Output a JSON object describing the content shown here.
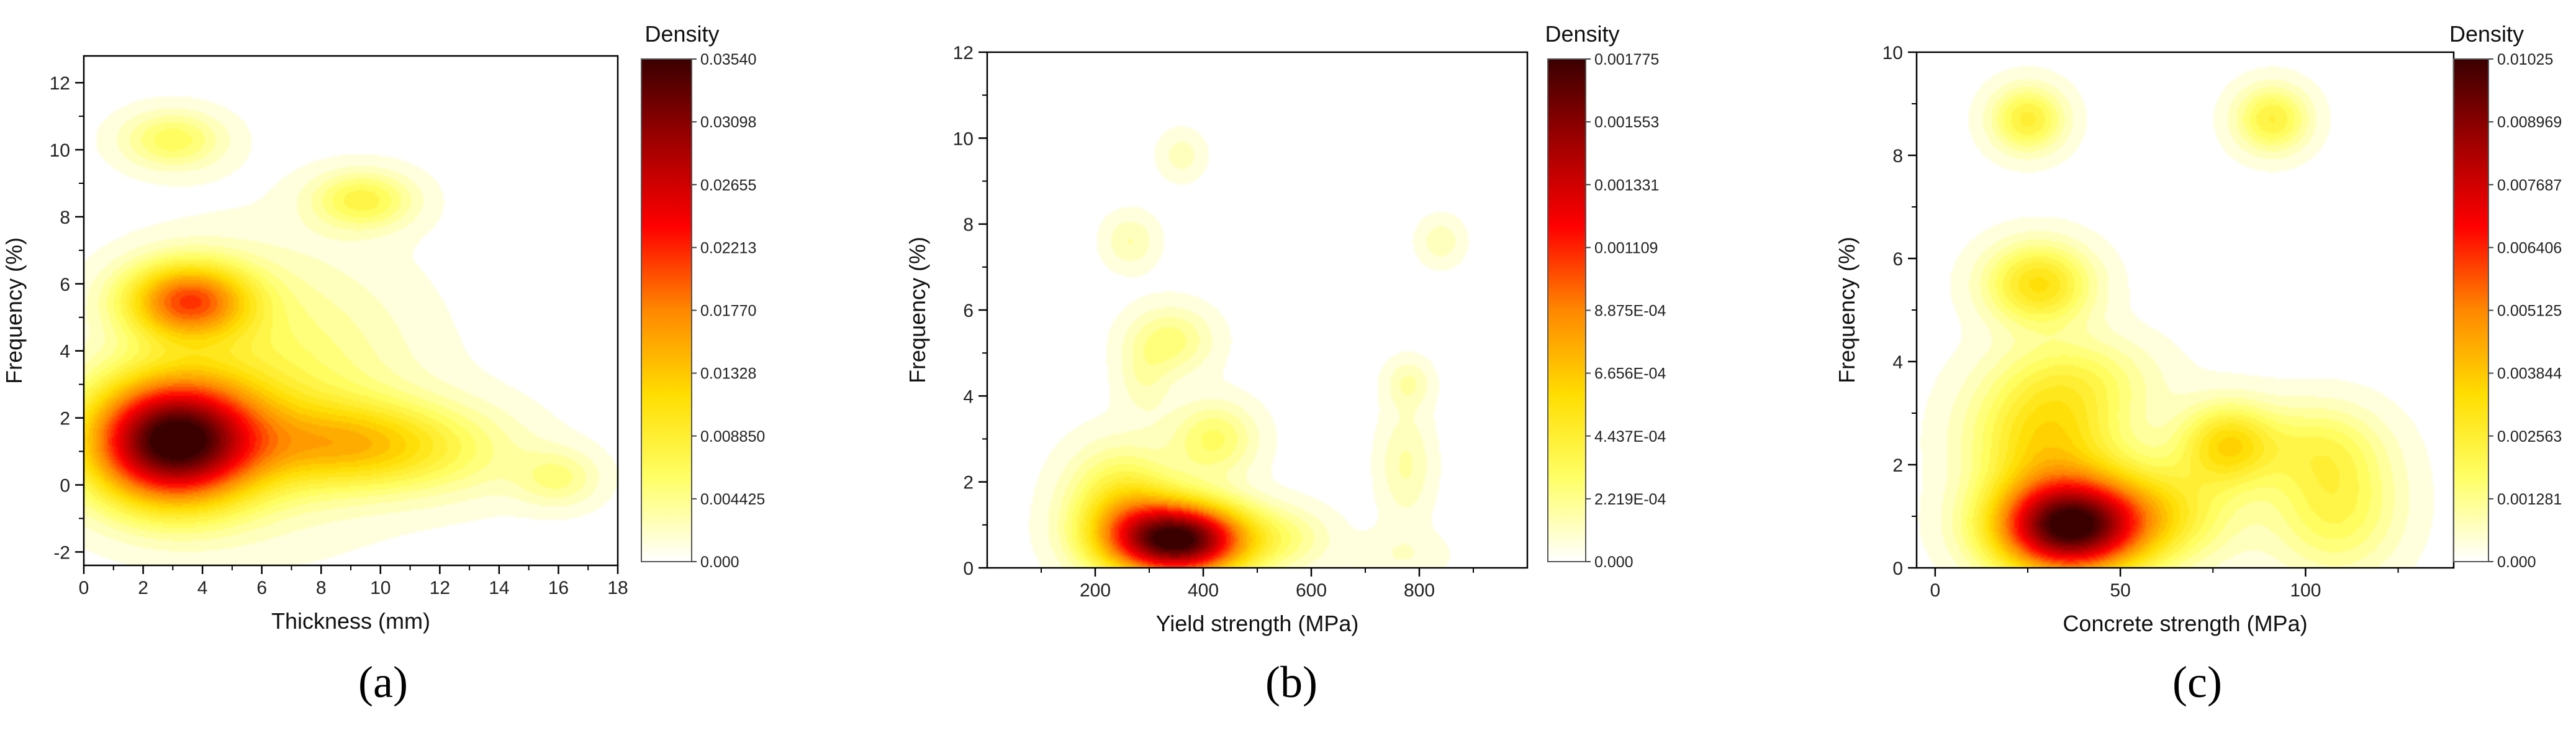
{
  "colormap": [
    "#ffffff",
    "#ffff66",
    "#ffdd00",
    "#ff8800",
    "#ff0000",
    "#a00000",
    "#3a0000"
  ],
  "axis_color": "#000000",
  "chart_data": [
    {
      "type": "heatmap",
      "panel_label": "(a)",
      "xlabel": "Thickness (mm)",
      "ylabel": "Frequency (%)",
      "xlim": [
        0,
        18
      ],
      "ylim": [
        -2.4,
        12.8
      ],
      "xticks": [
        0,
        2,
        4,
        6,
        8,
        10,
        12,
        14,
        16,
        18
      ],
      "yticks": [
        -2,
        0,
        2,
        4,
        6,
        8,
        10,
        12
      ],
      "colorbar": {
        "title": "Density",
        "min": 0,
        "max": 0.0354,
        "labels": [
          "0.000",
          "0.004425",
          "0.008850",
          "0.01328",
          "0.01770",
          "0.02213",
          "0.02655",
          "0.03098",
          "0.03540"
        ]
      },
      "density_peaks": [
        {
          "x": 3.0,
          "y": 1.3,
          "sx": 2.0,
          "sy": 1.3,
          "weight": 0.0354
        },
        {
          "x": 3.5,
          "y": 5.5,
          "sx": 1.5,
          "sy": 0.8,
          "weight": 0.019
        },
        {
          "x": 9.0,
          "y": 1.2,
          "sx": 2.3,
          "sy": 0.9,
          "weight": 0.011
        },
        {
          "x": 6.5,
          "y": 3.0,
          "sx": 3.0,
          "sy": 2.5,
          "weight": 0.006
        },
        {
          "x": 3.0,
          "y": 10.3,
          "sx": 1.2,
          "sy": 0.6,
          "weight": 0.0065
        },
        {
          "x": 9.4,
          "y": 8.5,
          "sx": 1.2,
          "sy": 0.6,
          "weight": 0.0075
        },
        {
          "x": 16.0,
          "y": 0.2,
          "sx": 1.0,
          "sy": 0.6,
          "weight": 0.0045
        },
        {
          "x": 12.5,
          "y": 1.0,
          "sx": 2.0,
          "sy": 1.0,
          "weight": 0.0035
        }
      ]
    },
    {
      "type": "heatmap",
      "panel_label": "(b)",
      "xlabel": "Yield strength (MPa)",
      "ylabel": "Frequency (%)",
      "xlim": [
        0,
        1000
      ],
      "ylim": [
        0,
        12
      ],
      "xticks": [
        200,
        400,
        600,
        800
      ],
      "yticks": [
        0,
        2,
        4,
        6,
        8,
        10,
        12
      ],
      "colorbar": {
        "title": "Density",
        "min": 0,
        "max": 0.001775,
        "labels": [
          "0.000",
          "2.219E-04",
          "4.437E-04",
          "6.656E-04",
          "8.875E-04",
          "0.001109",
          "0.001331",
          "0.001553",
          "0.001775"
        ]
      },
      "density_peaks": [
        {
          "x": 355,
          "y": 0.65,
          "sx": 90,
          "sy": 0.6,
          "weight": 0.001775
        },
        {
          "x": 250,
          "y": 1.5,
          "sx": 70,
          "sy": 0.9,
          "weight": 0.00045
        },
        {
          "x": 420,
          "y": 3.0,
          "sx": 55,
          "sy": 0.6,
          "weight": 0.0003
        },
        {
          "x": 340,
          "y": 5.3,
          "sx": 55,
          "sy": 0.55,
          "weight": 0.00025
        },
        {
          "x": 290,
          "y": 4.4,
          "sx": 35,
          "sy": 0.6,
          "weight": 0.00013
        },
        {
          "x": 265,
          "y": 7.6,
          "sx": 35,
          "sy": 0.45,
          "weight": 0.00016
        },
        {
          "x": 360,
          "y": 9.6,
          "sx": 30,
          "sy": 0.4,
          "weight": 0.00013
        },
        {
          "x": 840,
          "y": 7.6,
          "sx": 30,
          "sy": 0.4,
          "weight": 0.00014
        },
        {
          "x": 780,
          "y": 4.3,
          "sx": 30,
          "sy": 0.4,
          "weight": 0.00016
        },
        {
          "x": 775,
          "y": 2.4,
          "sx": 35,
          "sy": 0.9,
          "weight": 0.00017
        },
        {
          "x": 560,
          "y": 0.7,
          "sx": 60,
          "sy": 0.5,
          "weight": 0.00016
        },
        {
          "x": 770,
          "y": 0.3,
          "sx": 60,
          "sy": 0.4,
          "weight": 9e-05
        }
      ]
    },
    {
      "type": "heatmap",
      "panel_label": "(c)",
      "xlabel": "Concrete strength (MPa)",
      "ylabel": "Frequency (%)",
      "xlim": [
        -5,
        140
      ],
      "ylim": [
        0,
        10
      ],
      "xticks": [
        0,
        50,
        100
      ],
      "yticks": [
        0,
        2,
        4,
        6,
        8,
        10
      ],
      "colorbar": {
        "title": "Density",
        "min": 0,
        "max": 0.01025,
        "labels": [
          "0.000",
          "0.001281",
          "0.002563",
          "0.003844",
          "0.005125",
          "0.006406",
          "0.007687",
          "0.008969",
          "0.01025"
        ]
      },
      "density_peaks": [
        {
          "x": 36,
          "y": 0.8,
          "sx": 14,
          "sy": 0.65,
          "weight": 0.01025
        },
        {
          "x": 30,
          "y": 2.5,
          "sx": 14,
          "sy": 0.8,
          "weight": 0.0032
        },
        {
          "x": 38,
          "y": 3.7,
          "sx": 15,
          "sy": 0.6,
          "weight": 0.0015
        },
        {
          "x": 28,
          "y": 5.5,
          "sx": 10,
          "sy": 0.55,
          "weight": 0.0032
        },
        {
          "x": 25,
          "y": 8.7,
          "sx": 7,
          "sy": 0.45,
          "weight": 0.0025
        },
        {
          "x": 91,
          "y": 8.7,
          "sx": 7,
          "sy": 0.45,
          "weight": 0.0024
        },
        {
          "x": 79,
          "y": 2.4,
          "sx": 9,
          "sy": 0.55,
          "weight": 0.0032
        },
        {
          "x": 108,
          "y": 1.2,
          "sx": 12,
          "sy": 0.9,
          "weight": 0.0021
        },
        {
          "x": 62,
          "y": 1.1,
          "sx": 14,
          "sy": 0.7,
          "weight": 0.0022
        },
        {
          "x": 103,
          "y": 2.4,
          "sx": 12,
          "sy": 0.6,
          "weight": 0.0013
        }
      ]
    }
  ]
}
